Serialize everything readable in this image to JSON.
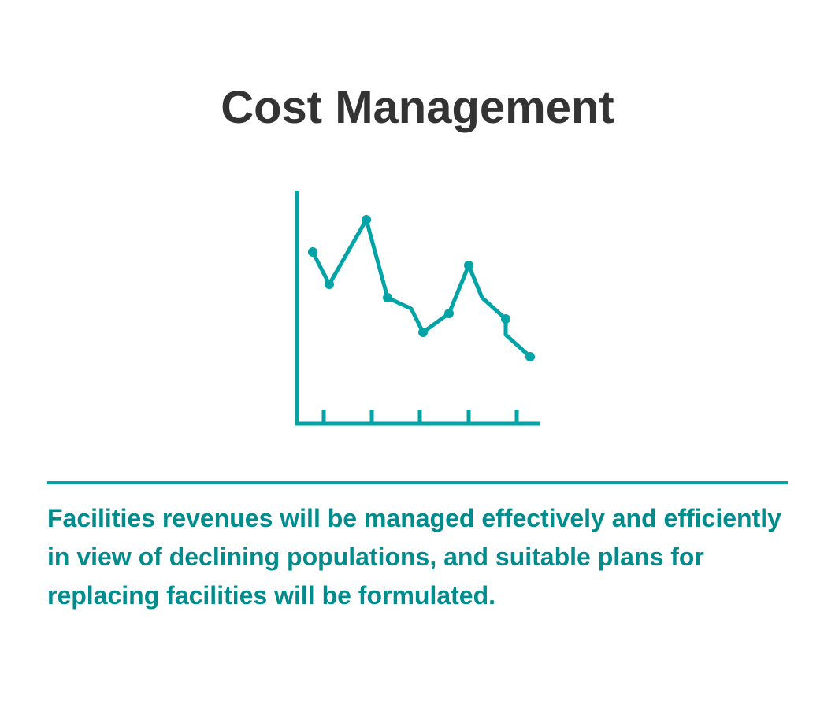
{
  "title": "Cost Management",
  "icon": {
    "name": "declining-line-chart-icon",
    "color": "#00a4a6"
  },
  "divider_color": "#00a4a6",
  "description": "Facilities revenues will be managed effectively and efficiently in view of declining populations, and suitable plans for replacing facilities will be formulated.",
  "colors": {
    "title": "#333333",
    "text": "#008c8c",
    "accent": "#00a4a6"
  }
}
